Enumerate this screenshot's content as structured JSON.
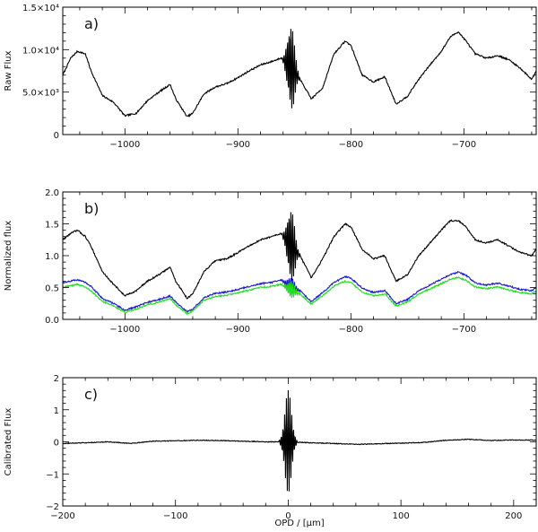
{
  "chart_data": [
    {
      "type": "line",
      "panel_label": "a)",
      "xlabel": "",
      "ylabel": "Raw Flux",
      "xlim": [
        -1055,
        -636
      ],
      "ylim": [
        0,
        15000
      ],
      "x_ticks": [
        -1000,
        -900,
        -800,
        -700
      ],
      "x_tick_labels": [
        "−1000",
        "−900",
        "−800",
        "−700"
      ],
      "y_ticks": [
        0,
        5000,
        10000,
        15000
      ],
      "y_tick_labels": [
        "0",
        "5.0×10³",
        "1.0×10⁴",
        "1.5×10⁴"
      ],
      "series": [
        {
          "color": "#000000",
          "x": [
            -1055,
            -1048,
            -1042,
            -1035,
            -1030,
            -1020,
            -1010,
            -1000,
            -990,
            -980,
            -970,
            -960,
            -955,
            -945,
            -940,
            -930,
            -920,
            -910,
            -900,
            -890,
            -880,
            -870,
            -862,
            -855,
            -845,
            -835,
            -825,
            -815,
            -805,
            -800,
            -790,
            -780,
            -770,
            -760,
            -750,
            -740,
            -730,
            -720,
            -712,
            -705,
            -698,
            -690,
            -680,
            -670,
            -660,
            -650,
            -640,
            -636
          ],
          "y": [
            7000,
            9000,
            9800,
            9500,
            7500,
            4600,
            3800,
            2200,
            2500,
            4000,
            5000,
            5900,
            4200,
            2100,
            2500,
            4800,
            5600,
            6000,
            6700,
            7500,
            8200,
            8600,
            9000,
            8300,
            6500,
            4200,
            5500,
            9500,
            11000,
            10500,
            7000,
            6200,
            6800,
            3600,
            4500,
            6500,
            8200,
            9800,
            11500,
            12100,
            11000,
            9500,
            9000,
            9300,
            8800,
            7800,
            6500,
            7500
          ]
        }
      ],
      "packet": {
        "center": -853,
        "half_width": 8,
        "amplitude": 5200,
        "period": 1.55,
        "x_step": 0.4
      }
    },
    {
      "type": "line",
      "panel_label": "b)",
      "xlabel": "",
      "ylabel": "Normalized flux",
      "xlim": [
        -1055,
        -636
      ],
      "ylim": [
        0,
        2.0
      ],
      "x_ticks": [
        -1000,
        -900,
        -800,
        -700
      ],
      "x_tick_labels": [
        "−1000",
        "−900",
        "−800",
        "−700"
      ],
      "y_ticks": [
        0,
        0.5,
        1.0,
        1.5,
        2.0
      ],
      "y_tick_labels": [
        "0.0",
        "0.5",
        "1.0",
        "1.5",
        "2.0"
      ],
      "series": [
        {
          "color": "#000000",
          "x": [
            -1055,
            -1048,
            -1042,
            -1035,
            -1030,
            -1020,
            -1010,
            -1000,
            -990,
            -980,
            -970,
            -960,
            -955,
            -945,
            -940,
            -930,
            -920,
            -910,
            -900,
            -890,
            -880,
            -870,
            -862,
            -855,
            -845,
            -835,
            -825,
            -815,
            -805,
            -800,
            -790,
            -780,
            -770,
            -760,
            -750,
            -740,
            -730,
            -720,
            -712,
            -705,
            -698,
            -690,
            -680,
            -670,
            -660,
            -650,
            -640,
            -636
          ],
          "y": [
            1.25,
            1.35,
            1.4,
            1.3,
            1.15,
            0.75,
            0.55,
            0.37,
            0.45,
            0.6,
            0.7,
            0.82,
            0.6,
            0.33,
            0.4,
            0.75,
            0.92,
            0.95,
            1.05,
            1.15,
            1.25,
            1.3,
            1.35,
            1.2,
            1.0,
            0.65,
            0.95,
            1.3,
            1.5,
            1.45,
            1.1,
            0.95,
            1.0,
            0.6,
            0.7,
            1.0,
            1.2,
            1.4,
            1.55,
            1.55,
            1.45,
            1.25,
            1.2,
            1.25,
            1.15,
            1.05,
            1.0,
            1.1
          ],
          "packet_amplitude": 0.6
        },
        {
          "color": "#1a1acc",
          "x": [
            -1055,
            -1048,
            -1042,
            -1035,
            -1030,
            -1020,
            -1010,
            -1000,
            -990,
            -980,
            -970,
            -960,
            -955,
            -945,
            -940,
            -930,
            -920,
            -910,
            -900,
            -890,
            -880,
            -870,
            -862,
            -855,
            -845,
            -835,
            -825,
            -815,
            -805,
            -800,
            -790,
            -780,
            -770,
            -760,
            -750,
            -740,
            -730,
            -720,
            -712,
            -705,
            -698,
            -690,
            -680,
            -670,
            -660,
            -650,
            -640,
            -636
          ],
          "y": [
            0.57,
            0.6,
            0.62,
            0.58,
            0.52,
            0.33,
            0.25,
            0.14,
            0.2,
            0.27,
            0.31,
            0.37,
            0.27,
            0.12,
            0.16,
            0.34,
            0.41,
            0.43,
            0.47,
            0.52,
            0.56,
            0.58,
            0.62,
            0.54,
            0.45,
            0.28,
            0.42,
            0.58,
            0.67,
            0.65,
            0.49,
            0.42,
            0.45,
            0.25,
            0.31,
            0.45,
            0.54,
            0.63,
            0.7,
            0.74,
            0.69,
            0.57,
            0.54,
            0.57,
            0.52,
            0.47,
            0.45,
            0.5
          ],
          "packet_amplitude": 0.15
        },
        {
          "color": "#22dd22",
          "x": [
            -1055,
            -1048,
            -1042,
            -1035,
            -1030,
            -1020,
            -1010,
            -1000,
            -990,
            -980,
            -970,
            -960,
            -955,
            -945,
            -940,
            -930,
            -920,
            -910,
            -900,
            -890,
            -880,
            -870,
            -862,
            -855,
            -845,
            -835,
            -825,
            -815,
            -805,
            -800,
            -790,
            -780,
            -770,
            -760,
            -750,
            -740,
            -730,
            -720,
            -712,
            -705,
            -698,
            -690,
            -680,
            -670,
            -660,
            -650,
            -640,
            -636
          ],
          "y": [
            0.5,
            0.53,
            0.55,
            0.51,
            0.45,
            0.28,
            0.21,
            0.11,
            0.16,
            0.23,
            0.27,
            0.33,
            0.23,
            0.09,
            0.13,
            0.3,
            0.36,
            0.38,
            0.42,
            0.46,
            0.5,
            0.52,
            0.55,
            0.48,
            0.4,
            0.24,
            0.37,
            0.52,
            0.6,
            0.58,
            0.43,
            0.37,
            0.4,
            0.21,
            0.27,
            0.4,
            0.48,
            0.56,
            0.63,
            0.66,
            0.61,
            0.51,
            0.48,
            0.51,
            0.46,
            0.42,
            0.4,
            0.44
          ],
          "packet_amplitude": 0.13
        }
      ],
      "packet": {
        "center": -853,
        "half_width": 8,
        "period": 1.55,
        "x_step": 0.4
      }
    },
    {
      "type": "line",
      "panel_label": "c)",
      "xlabel": "OPD / [μm]",
      "ylabel": "Calibrated Flux",
      "xlim": [
        -200,
        220
      ],
      "ylim": [
        -2,
        2
      ],
      "x_ticks": [
        -200,
        -100,
        0,
        100,
        200
      ],
      "x_tick_labels": [
        "−200",
        "−100",
        "0",
        "100",
        "200"
      ],
      "y_ticks": [
        -2,
        -1,
        0,
        1,
        2
      ],
      "y_tick_labels": [
        "−2",
        "−1",
        "0",
        "1",
        "2"
      ],
      "series": [
        {
          "color": "#000000",
          "x": [
            -200,
            -180,
            -160,
            -140,
            -120,
            -100,
            -80,
            -60,
            -40,
            -20,
            0,
            20,
            40,
            60,
            80,
            100,
            120,
            140,
            160,
            180,
            200,
            220
          ],
          "y": [
            -0.05,
            -0.03,
            0.0,
            -0.05,
            0.02,
            0.03,
            0.05,
            0.04,
            0.02,
            0.0,
            0.0,
            -0.03,
            -0.05,
            -0.08,
            -0.06,
            -0.04,
            -0.02,
            0.05,
            0.08,
            0.04,
            0.06,
            0.05
          ]
        }
      ],
      "packet": {
        "center": 0,
        "half_width": 8,
        "amplitude": 1.6,
        "period": 1.55,
        "x_step": 0.4
      }
    }
  ]
}
